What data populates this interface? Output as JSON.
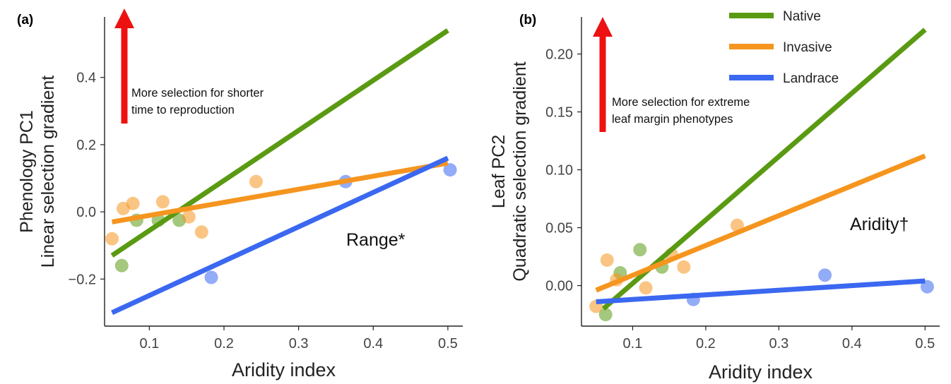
{
  "colors": {
    "native": "#5a9a12",
    "invasive": "#f5951f",
    "landrace": "#3b68f0",
    "arrow": "#ee1111",
    "axis": "#222222",
    "text": "#222222"
  },
  "legend": [
    {
      "key": "native",
      "label": "Native"
    },
    {
      "key": "invasive",
      "label": "Invasive"
    },
    {
      "key": "landrace",
      "label": "Landrace"
    }
  ],
  "chart_data": [
    {
      "type": "scatter",
      "panel_label": "(a)",
      "xlabel": "Aridity index",
      "ylabel": [
        "Phenology PC1",
        "Linear selection gradient"
      ],
      "xlim": [
        0.04,
        0.52
      ],
      "ylim": [
        -0.34,
        0.58
      ],
      "xticks": [
        {
          "v": 0.1,
          "label": "0.1"
        },
        {
          "v": 0.2,
          "label": "0.2"
        },
        {
          "v": 0.3,
          "label": "0.3"
        },
        {
          "v": 0.4,
          "label": "0.4"
        },
        {
          "v": 0.5,
          "label": "0.5"
        }
      ],
      "yticks": [
        {
          "v": -0.2,
          "label": "−0.2"
        },
        {
          "v": 0.0,
          "label": "0.0"
        },
        {
          "v": 0.2,
          "label": "0.2"
        },
        {
          "v": 0.4,
          "label": "0.4"
        }
      ],
      "annotation": "Range*",
      "arrow_text": [
        "More selection for shorter",
        "time to reproduction"
      ],
      "series": [
        {
          "name": "Native",
          "key": "native",
          "points": [
            [
              0.063,
              -0.16
            ],
            [
              0.083,
              -0.025
            ],
            [
              0.112,
              -0.025
            ],
            [
              0.14,
              -0.025
            ]
          ],
          "line": [
            [
              0.05,
              -0.13
            ],
            [
              0.5,
              0.54
            ]
          ]
        },
        {
          "name": "Invasive",
          "key": "invasive",
          "points": [
            [
              0.05,
              -0.08
            ],
            [
              0.065,
              0.01
            ],
            [
              0.078,
              0.025
            ],
            [
              0.118,
              0.03
            ],
            [
              0.153,
              -0.015
            ],
            [
              0.17,
              -0.06
            ],
            [
              0.243,
              0.09
            ]
          ],
          "line": [
            [
              0.05,
              -0.03
            ],
            [
              0.5,
              0.145
            ]
          ]
        },
        {
          "name": "Landrace",
          "key": "landrace",
          "points": [
            [
              0.183,
              -0.195
            ],
            [
              0.363,
              0.09
            ],
            [
              0.503,
              0.125
            ]
          ],
          "line": [
            [
              0.05,
              -0.3
            ],
            [
              0.5,
              0.16
            ]
          ]
        }
      ]
    },
    {
      "type": "scatter",
      "panel_label": "(b)",
      "xlabel": "Aridity index",
      "ylabel": [
        "Leaf PC2",
        "Quadratic selection gradient"
      ],
      "xlim": [
        0.03,
        0.52
      ],
      "ylim": [
        -0.035,
        0.232
      ],
      "xticks": [
        {
          "v": 0.1,
          "label": "0.1"
        },
        {
          "v": 0.2,
          "label": "0.2"
        },
        {
          "v": 0.3,
          "label": "0.3"
        },
        {
          "v": 0.4,
          "label": "0.4"
        },
        {
          "v": 0.5,
          "label": "0.5"
        }
      ],
      "yticks": [
        {
          "v": 0.0,
          "label": "0.00"
        },
        {
          "v": 0.05,
          "label": "0.05"
        },
        {
          "v": 0.1,
          "label": "0.10"
        },
        {
          "v": 0.15,
          "label": "0.15"
        },
        {
          "v": 0.2,
          "label": "0.20"
        }
      ],
      "annotation": "Aridity†",
      "arrow_text": [
        "More selection for extreme",
        "leaf margin phenotypes"
      ],
      "series": [
        {
          "name": "Native",
          "key": "native",
          "points": [
            [
              0.063,
              -0.025
            ],
            [
              0.083,
              0.011
            ],
            [
              0.11,
              0.031
            ],
            [
              0.14,
              0.016
            ]
          ],
          "line": [
            [
              0.06,
              -0.02
            ],
            [
              0.5,
              0.221
            ]
          ]
        },
        {
          "name": "Invasive",
          "key": "invasive",
          "points": [
            [
              0.05,
              -0.018
            ],
            [
              0.065,
              0.022
            ],
            [
              0.078,
              0.005
            ],
            [
              0.118,
              -0.002
            ],
            [
              0.153,
              0.027
            ],
            [
              0.17,
              0.016
            ],
            [
              0.243,
              0.052
            ]
          ],
          "line": [
            [
              0.05,
              -0.004
            ],
            [
              0.5,
              0.112
            ]
          ]
        },
        {
          "name": "Landrace",
          "key": "landrace",
          "points": [
            [
              0.183,
              -0.012
            ],
            [
              0.363,
              0.009
            ],
            [
              0.503,
              -0.001
            ]
          ],
          "line": [
            [
              0.05,
              -0.014
            ],
            [
              0.5,
              0.004
            ]
          ]
        }
      ]
    }
  ]
}
